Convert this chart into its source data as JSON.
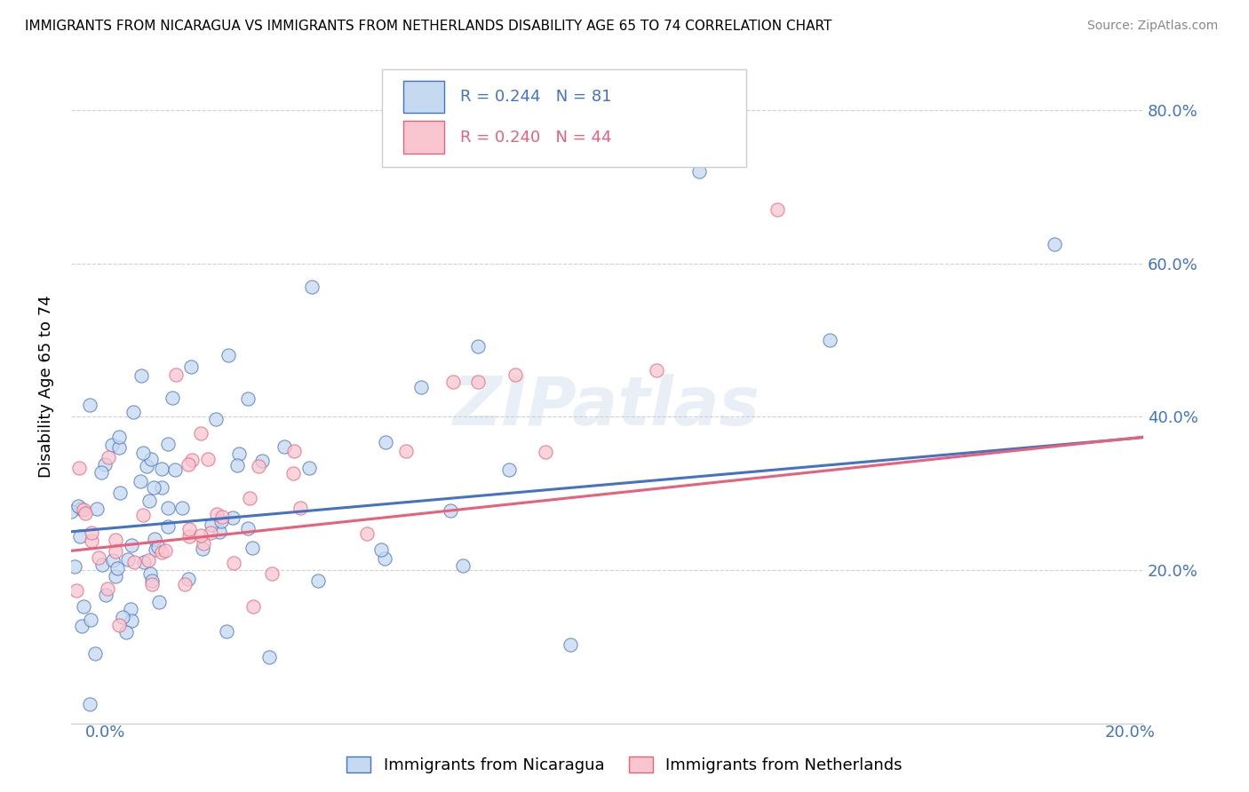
{
  "title": "IMMIGRANTS FROM NICARAGUA VS IMMIGRANTS FROM NETHERLANDS DISABILITY AGE 65 TO 74 CORRELATION CHART",
  "source": "Source: ZipAtlas.com",
  "ylabel": "Disability Age 65 to 74",
  "yticks": [
    0.0,
    0.2,
    0.4,
    0.6,
    0.8
  ],
  "ytick_labels": [
    "",
    "20.0%",
    "40.0%",
    "60.0%",
    "80.0%"
  ],
  "xlim": [
    0.0,
    0.205
  ],
  "ylim": [
    0.05,
    0.88
  ],
  "nicaragua_color": "#c5d9f0",
  "netherlands_color": "#f9c6d0",
  "nicaragua_edge_color": "#4472c4",
  "netherlands_edge_color": "#e8607a",
  "nicaragua_line_color": "#4472c4",
  "netherlands_line_color": "#e8607a",
  "nicaragua_R": 0.244,
  "nicaragua_N": 81,
  "netherlands_R": 0.24,
  "netherlands_N": 44,
  "watermark": "ZIPatlas",
  "legend_label_nicaragua": "Immigrants from Nicaragua",
  "legend_label_netherlands": "Immigrants from Netherlands",
  "background_color": "#ffffff",
  "grid_color": "#cccccc",
  "right_ytick_color": "#4472c4",
  "bottom_xlabel_color": "#4472c4"
}
